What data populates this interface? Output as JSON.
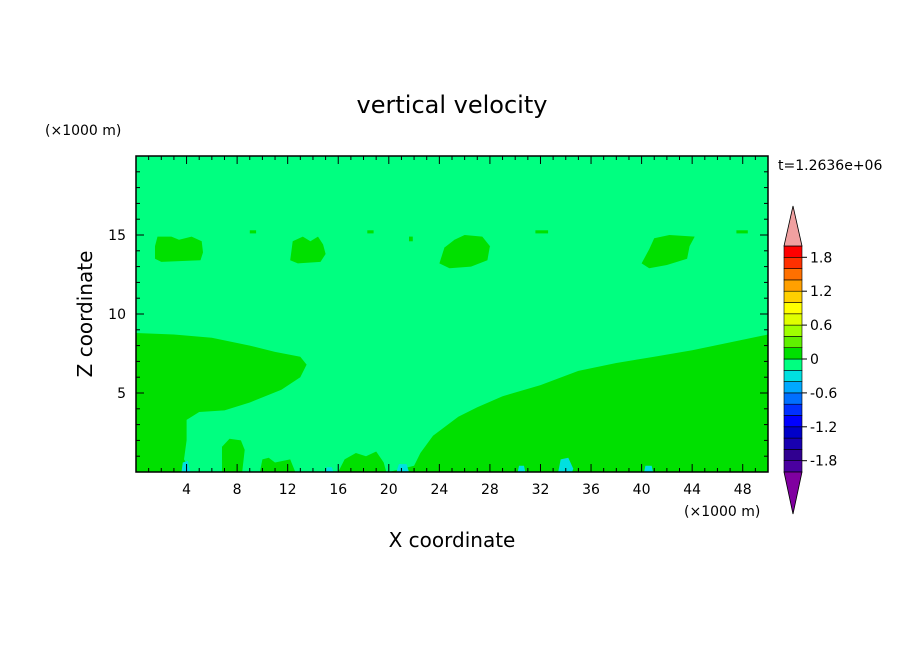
{
  "chart_data": {
    "type": "heatmap",
    "title": "vertical velocity",
    "xlabel": "X coordinate",
    "ylabel": "Z coordinate",
    "x_unit": "(×1000 m)",
    "y_unit": "(×1000 m)",
    "time_label": "t=1.2636e+06",
    "xlim": [
      0,
      50
    ],
    "ylim": [
      0,
      20
    ],
    "x_ticks": [
      4,
      8,
      12,
      16,
      20,
      24,
      28,
      32,
      36,
      40,
      44,
      48
    ],
    "y_ticks": [
      5,
      10,
      15
    ],
    "background_level_color": "#00ff80",
    "colorbar": {
      "levels": [
        -2.0,
        -1.8,
        -1.6,
        -1.4,
        -1.2,
        -1.0,
        -0.8,
        -0.6,
        -0.4,
        -0.2,
        0.0,
        0.2,
        0.4,
        0.6,
        0.8,
        1.0,
        1.2,
        1.4,
        1.6,
        1.8,
        2.0
      ],
      "colors": [
        "#4a00a0",
        "#300090",
        "#1800b0",
        "#0000c8",
        "#0000ff",
        "#0030ff",
        "#0070ff",
        "#00a8ff",
        "#00e0e0",
        "#00ff80",
        "#00e000",
        "#60f000",
        "#a0ff00",
        "#e0ff00",
        "#ffff00",
        "#ffd000",
        "#ffa000",
        "#ff7000",
        "#ff3000",
        "#ff0000"
      ],
      "tick_labels": [
        "1.8",
        "1.2",
        "0.6",
        "0",
        "-0.6",
        "-1.2",
        "-1.8"
      ],
      "tick_values": [
        1.8,
        1.2,
        0.6,
        0.0,
        -0.6,
        -1.2,
        -1.8
      ],
      "top_triangle_color": "#f0a0a0",
      "bottom_triangle_color": "#8000a0"
    },
    "regions": [
      {
        "name": "updraft-left-lower",
        "color": "#00e000",
        "points": [
          [
            0,
            8.8
          ],
          [
            3,
            8.7
          ],
          [
            6,
            8.5
          ],
          [
            9,
            8.0
          ],
          [
            11,
            7.6
          ],
          [
            13,
            7.3
          ],
          [
            13.5,
            6.8
          ],
          [
            13,
            6.0
          ],
          [
            11.5,
            5.2
          ],
          [
            9,
            4.4
          ],
          [
            7,
            3.9
          ],
          [
            5,
            3.8
          ],
          [
            4,
            3.3
          ],
          [
            4,
            2.0
          ],
          [
            3.8,
            0.8
          ],
          [
            4.2,
            0.3
          ],
          [
            4.2,
            0
          ],
          [
            0,
            0
          ]
        ]
      },
      {
        "name": "updraft-right-lower",
        "color": "#00e000",
        "points": [
          [
            50,
            8.7
          ],
          [
            47,
            8.2
          ],
          [
            44,
            7.7
          ],
          [
            41,
            7.3
          ],
          [
            38,
            6.9
          ],
          [
            35,
            6.4
          ],
          [
            32,
            5.5
          ],
          [
            29,
            4.8
          ],
          [
            27,
            4.1
          ],
          [
            25.5,
            3.5
          ],
          [
            23.5,
            2.3
          ],
          [
            22.5,
            1.2
          ],
          [
            22,
            0.4
          ],
          [
            20,
            0
          ],
          [
            50,
            0
          ]
        ]
      },
      {
        "name": "updraft-cell-8",
        "color": "#00e000",
        "points": [
          [
            6.8,
            0
          ],
          [
            6.8,
            1.6
          ],
          [
            7.4,
            2.1
          ],
          [
            8.3,
            2.0
          ],
          [
            8.6,
            1.4
          ],
          [
            8.4,
            0
          ]
        ]
      },
      {
        "name": "updraft-cell-15",
        "color": "#00e000",
        "points": [
          [
            16,
            0
          ],
          [
            16.5,
            0.8
          ],
          [
            17.4,
            1.2
          ],
          [
            18.2,
            1.0
          ],
          [
            19,
            1.3
          ],
          [
            19.6,
            0.6
          ],
          [
            19.8,
            0
          ]
        ]
      },
      {
        "name": "updraft-cell-12",
        "color": "#00e000",
        "points": [
          [
            9.8,
            0
          ],
          [
            10,
            0.8
          ],
          [
            10.5,
            0.9
          ],
          [
            11,
            0.6
          ],
          [
            12.2,
            0.8
          ],
          [
            12.6,
            0
          ]
        ]
      },
      {
        "name": "upper-patch-1",
        "color": "#00e000",
        "points": [
          [
            1.5,
            13.5
          ],
          [
            1.5,
            14.3
          ],
          [
            1.7,
            14.9
          ],
          [
            2.8,
            14.9
          ],
          [
            3.4,
            14.7
          ],
          [
            4.4,
            14.9
          ],
          [
            5.2,
            14.6
          ],
          [
            5.3,
            13.9
          ],
          [
            5.1,
            13.4
          ],
          [
            2.0,
            13.3
          ]
        ]
      },
      {
        "name": "upper-patch-2",
        "color": "#00e000",
        "points": [
          [
            12.2,
            13.4
          ],
          [
            12.4,
            14.6
          ],
          [
            13.2,
            14.9
          ],
          [
            13.8,
            14.6
          ],
          [
            14.4,
            14.9
          ],
          [
            14.8,
            14.4
          ],
          [
            15.0,
            13.8
          ],
          [
            14.6,
            13.3
          ],
          [
            12.8,
            13.2
          ]
        ]
      },
      {
        "name": "upper-patch-3",
        "color": "#00e000",
        "points": [
          [
            24.0,
            13.2
          ],
          [
            24.4,
            14.2
          ],
          [
            25.2,
            14.7
          ],
          [
            26.0,
            15.0
          ],
          [
            27.4,
            14.9
          ],
          [
            28.0,
            14.3
          ],
          [
            27.8,
            13.4
          ],
          [
            26.5,
            13.0
          ],
          [
            24.8,
            12.9
          ]
        ]
      },
      {
        "name": "upper-patch-4",
        "color": "#00e000",
        "points": [
          [
            40.0,
            13.2
          ],
          [
            40.6,
            14.1
          ],
          [
            41.0,
            14.8
          ],
          [
            42.2,
            15.0
          ],
          [
            44.2,
            14.9
          ],
          [
            43.8,
            14.3
          ],
          [
            43.6,
            13.5
          ],
          [
            42.0,
            13.1
          ],
          [
            40.6,
            12.9
          ]
        ]
      },
      {
        "name": "speck-a",
        "color": "#00e000",
        "points": [
          [
            9.0,
            15.1
          ],
          [
            9.5,
            15.1
          ],
          [
            9.5,
            15.3
          ],
          [
            9.0,
            15.3
          ]
        ]
      },
      {
        "name": "speck-b",
        "color": "#00e000",
        "points": [
          [
            18.3,
            15.1
          ],
          [
            18.8,
            15.1
          ],
          [
            18.8,
            15.3
          ],
          [
            18.3,
            15.3
          ]
        ]
      },
      {
        "name": "speck-c",
        "color": "#00e000",
        "points": [
          [
            21.6,
            14.6
          ],
          [
            21.9,
            14.6
          ],
          [
            21.9,
            14.9
          ],
          [
            21.6,
            14.9
          ]
        ]
      },
      {
        "name": "speck-d",
        "color": "#00e000",
        "points": [
          [
            31.6,
            15.1
          ],
          [
            32.6,
            15.1
          ],
          [
            32.6,
            15.3
          ],
          [
            31.6,
            15.3
          ]
        ]
      },
      {
        "name": "speck-e",
        "color": "#00e000",
        "points": [
          [
            47.5,
            15.1
          ],
          [
            48.4,
            15.1
          ],
          [
            48.4,
            15.3
          ],
          [
            47.5,
            15.3
          ]
        ]
      },
      {
        "name": "downdraft-cell-a",
        "color": "#00e0e0",
        "points": [
          [
            3.6,
            0
          ],
          [
            3.7,
            0.6
          ],
          [
            4.1,
            0.7
          ],
          [
            4.3,
            0
          ]
        ]
      },
      {
        "name": "downdraft-cell-b",
        "color": "#00e0e0",
        "points": [
          [
            20.6,
            0
          ],
          [
            20.8,
            0.5
          ],
          [
            21.4,
            0.5
          ],
          [
            21.6,
            0
          ]
        ]
      },
      {
        "name": "downdraft-cell-c",
        "color": "#00e0e0",
        "points": [
          [
            33.4,
            0
          ],
          [
            33.6,
            0.8
          ],
          [
            34.2,
            0.9
          ],
          [
            34.6,
            0.2
          ],
          [
            34.5,
            0
          ]
        ]
      },
      {
        "name": "downdraft-cell-d",
        "color": "#00e0e0",
        "points": [
          [
            30.2,
            0
          ],
          [
            30.3,
            0.4
          ],
          [
            30.7,
            0.4
          ],
          [
            30.8,
            0
          ]
        ]
      },
      {
        "name": "downdraft-cell-e",
        "color": "#00e0e0",
        "points": [
          [
            15.0,
            0
          ],
          [
            15.1,
            0.3
          ],
          [
            15.5,
            0.3
          ],
          [
            15.6,
            0
          ]
        ]
      },
      {
        "name": "downdraft-cell-f",
        "color": "#00e0e0",
        "points": [
          [
            40.2,
            0
          ],
          [
            40.3,
            0.4
          ],
          [
            40.8,
            0.4
          ],
          [
            40.9,
            0
          ]
        ]
      }
    ]
  }
}
